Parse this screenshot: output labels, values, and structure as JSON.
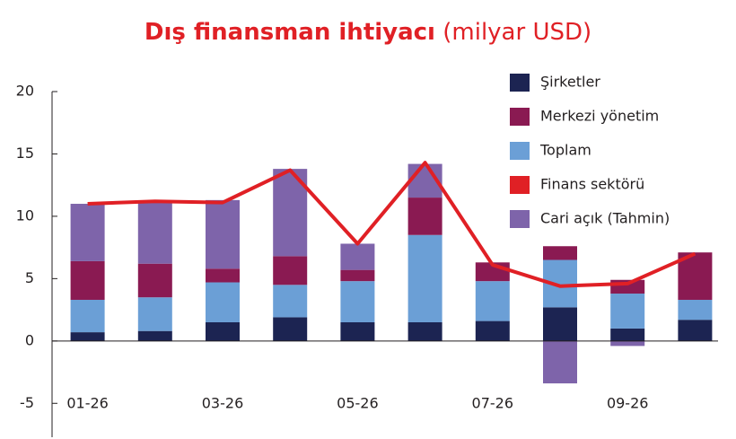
{
  "chart_data": {
    "type": "bar",
    "title": "Dış finansman ihtiyacı",
    "subtitle": "(milyar USD)",
    "categories": [
      "01-26",
      null,
      "03-26",
      null,
      "05-26",
      null,
      "07-26",
      null,
      "09-26",
      null
    ],
    "ylim": [
      -7.5,
      20
    ],
    "yticks": [
      -5,
      0,
      5,
      10,
      15,
      20
    ],
    "stacked": true,
    "series": [
      {
        "name": "Şirketler",
        "type": "bar",
        "color": "#1c2452",
        "values": [
          0.7,
          0.8,
          1.5,
          1.9,
          1.5,
          1.5,
          1.6,
          2.7,
          1.0,
          1.7
        ]
      },
      {
        "name": "Merkezi yönetim",
        "type": "bar",
        "color": "#8a1a52",
        "values": [
          3.1,
          2.7,
          1.1,
          2.3,
          0.9,
          3.0,
          1.5,
          1.1,
          1.1,
          3.8
        ]
      },
      {
        "name": "Toplam",
        "type": "bar",
        "color": "#6b9fd6",
        "values": [
          2.6,
          2.7,
          3.2,
          2.6,
          3.3,
          7.0,
          3.2,
          3.8,
          2.8,
          1.6
        ]
      },
      {
        "name": "Finans sektörü",
        "type": "line",
        "color": "#e02025",
        "values": [
          11.0,
          11.2,
          11.1,
          13.7,
          7.8,
          14.3,
          6.1,
          4.4,
          4.6,
          7.0
        ]
      },
      {
        "name": "Cari açık (Tahmin)",
        "type": "bar",
        "color": "#7e64aa",
        "values": [
          4.6,
          5.0,
          5.5,
          7.0,
          2.1,
          2.7,
          0,
          -3.4,
          -0.4,
          0
        ]
      }
    ]
  }
}
